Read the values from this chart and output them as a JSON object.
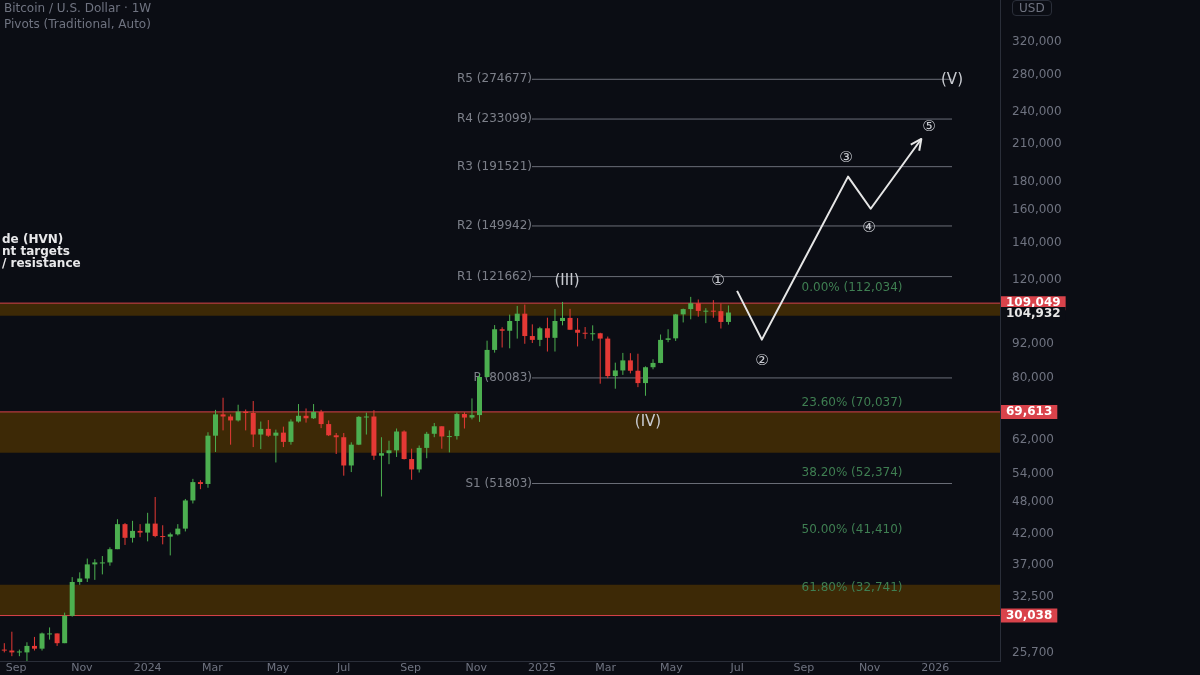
{
  "chart_data": {
    "type": "candlestick",
    "title": "Bitcoin / U.S. Dollar · 1W",
    "subtitle": "Pivots (Traditional, Auto)",
    "ylabel": "USD",
    "log": true,
    "xlim": [
      "2023-08-17",
      "2026-03-02"
    ],
    "xticks": [
      {
        "value": "2023-09-01",
        "label": "Sep"
      },
      {
        "value": "2023-11-01",
        "label": "Nov"
      },
      {
        "value": "2024-01-01",
        "label": "2024"
      },
      {
        "value": "2024-03-01",
        "label": "Mar"
      },
      {
        "value": "2024-05-01",
        "label": "May"
      },
      {
        "value": "2024-07-01",
        "label": "Jul"
      },
      {
        "value": "2024-09-01",
        "label": "Sep"
      },
      {
        "value": "2024-11-01",
        "label": "Nov"
      },
      {
        "value": "2025-01-01",
        "label": "2025"
      },
      {
        "value": "2025-03-01",
        "label": "Mar"
      },
      {
        "value": "2025-05-01",
        "label": "May"
      },
      {
        "value": "2025-07-01",
        "label": "Jul"
      },
      {
        "value": "2025-09-01",
        "label": "Sep"
      },
      {
        "value": "2025-11-01",
        "label": "Nov"
      },
      {
        "value": "2026-01-01",
        "label": "2026"
      }
    ],
    "ylim": [
      24900,
      381000
    ],
    "yticks": [
      {
        "value": 25700,
        "label": "25,700"
      },
      {
        "value": 32500,
        "label": "32,500"
      },
      {
        "value": 37000,
        "label": "37,000"
      },
      {
        "value": 42000,
        "label": "42,000"
      },
      {
        "value": 48000,
        "label": "48,000"
      },
      {
        "value": 54000,
        "label": "54,000"
      },
      {
        "value": 62000,
        "label": "62,000"
      },
      {
        "value": 80000,
        "label": "80,000"
      },
      {
        "value": 92000,
        "label": "92,000"
      },
      {
        "value": 120000,
        "label": "120,000"
      },
      {
        "value": 140000,
        "label": "140,000"
      },
      {
        "value": 160000,
        "label": "160,000"
      },
      {
        "value": 180000,
        "label": "180,000"
      },
      {
        "value": 210000,
        "label": "210,000"
      },
      {
        "value": 240000,
        "label": "240,000"
      },
      {
        "value": 280000,
        "label": "280,000"
      },
      {
        "value": 320000,
        "label": "320,000"
      }
    ],
    "x": [
      "2023-08-21",
      "2023-08-28",
      "2023-09-04",
      "2023-09-11",
      "2023-09-18",
      "2023-09-25",
      "2023-10-02",
      "2023-10-09",
      "2023-10-16",
      "2023-10-23",
      "2023-10-30",
      "2023-11-06",
      "2023-11-13",
      "2023-11-20",
      "2023-11-27",
      "2023-12-04",
      "2023-12-11",
      "2023-12-18",
      "2023-12-25",
      "2024-01-01",
      "2024-01-08",
      "2024-01-15",
      "2024-01-22",
      "2024-01-29",
      "2024-02-05",
      "2024-02-12",
      "2024-02-19",
      "2024-02-26",
      "2024-03-04",
      "2024-03-11",
      "2024-03-18",
      "2024-03-25",
      "2024-04-01",
      "2024-04-08",
      "2024-04-15",
      "2024-04-22",
      "2024-04-29",
      "2024-05-06",
      "2024-05-13",
      "2024-05-20",
      "2024-05-27",
      "2024-06-03",
      "2024-06-10",
      "2024-06-17",
      "2024-06-24",
      "2024-07-01",
      "2024-07-08",
      "2024-07-15",
      "2024-07-22",
      "2024-07-29",
      "2024-08-05",
      "2024-08-12",
      "2024-08-19",
      "2024-08-26",
      "2024-09-02",
      "2024-09-09",
      "2024-09-16",
      "2024-09-23",
      "2024-09-30",
      "2024-10-07",
      "2024-10-14",
      "2024-10-21",
      "2024-10-28",
      "2024-11-04",
      "2024-11-11",
      "2024-11-18",
      "2024-11-25",
      "2024-12-02",
      "2024-12-09",
      "2024-12-16",
      "2024-12-23",
      "2024-12-30",
      "2025-01-06",
      "2025-01-13",
      "2025-01-20",
      "2025-01-27",
      "2025-02-03",
      "2025-02-10",
      "2025-02-17",
      "2025-02-24",
      "2025-03-03",
      "2025-03-10",
      "2025-03-17",
      "2025-03-24",
      "2025-03-31",
      "2025-04-07",
      "2025-04-14",
      "2025-04-21",
      "2025-04-28",
      "2025-05-05",
      "2025-05-12",
      "2025-05-19",
      "2025-05-26",
      "2025-06-02",
      "2025-06-09",
      "2025-06-16",
      "2025-06-23"
    ],
    "ohlc": [
      [
        26100,
        26800,
        25800,
        26000
      ],
      [
        26000,
        28100,
        25400,
        25800
      ],
      [
        25800,
        26100,
        25400,
        25900
      ],
      [
        25800,
        26900,
        24900,
        26500
      ],
      [
        26500,
        27500,
        26000,
        26200
      ],
      [
        26200,
        28000,
        26000,
        27900
      ],
      [
        27900,
        28600,
        27200,
        27900
      ],
      [
        27900,
        27900,
        26500,
        26800
      ],
      [
        26800,
        30400,
        26800,
        30000
      ],
      [
        30000,
        35200,
        29900,
        34500
      ],
      [
        34500,
        35900,
        34100,
        35000
      ],
      [
        35000,
        38000,
        34500,
        37100
      ],
      [
        37100,
        37900,
        34800,
        37400
      ],
      [
        37400,
        38400,
        35600,
        37400
      ],
      [
        37400,
        39800,
        36900,
        39500
      ],
      [
        39500,
        44700,
        39500,
        43800
      ],
      [
        43800,
        44000,
        40200,
        41400
      ],
      [
        41400,
        44400,
        40600,
        42600
      ],
      [
        42600,
        43800,
        41500,
        42300
      ],
      [
        42300,
        45900,
        40800,
        43900
      ],
      [
        43900,
        49000,
        41500,
        41700
      ],
      [
        41700,
        43600,
        40300,
        41600
      ],
      [
        41600,
        42300,
        38500,
        42000
      ],
      [
        42000,
        43800,
        41800,
        43000
      ],
      [
        43000,
        48600,
        42500,
        48300
      ],
      [
        48300,
        52800,
        47700,
        52100
      ],
      [
        52100,
        52500,
        50600,
        51700
      ],
      [
        51700,
        64000,
        50900,
        63100
      ],
      [
        63100,
        70200,
        59000,
        68900
      ],
      [
        68900,
        73800,
        64500,
        68300
      ],
      [
        68300,
        68900,
        60800,
        67200
      ],
      [
        67200,
        71700,
        66900,
        69700
      ],
      [
        69700,
        70300,
        64500,
        69300
      ],
      [
        69300,
        72800,
        60200,
        63400
      ],
      [
        63400,
        66900,
        59700,
        64900
      ],
      [
        64900,
        67300,
        62800,
        63100
      ],
      [
        63100,
        64700,
        56500,
        63900
      ],
      [
        63900,
        65500,
        60200,
        61500
      ],
      [
        61500,
        67500,
        60800,
        66900
      ],
      [
        66900,
        71900,
        66600,
        68500
      ],
      [
        68500,
        70600,
        66600,
        67800
      ],
      [
        67800,
        71900,
        67600,
        69600
      ],
      [
        69600,
        70200,
        65100,
        66200
      ],
      [
        66200,
        67200,
        63000,
        63200
      ],
      [
        63200,
        63800,
        58500,
        62700
      ],
      [
        62700,
        63800,
        53500,
        55800
      ],
      [
        55800,
        61400,
        54300,
        60800
      ],
      [
        60800,
        68400,
        60700,
        68200
      ],
      [
        68200,
        69400,
        63400,
        68300
      ],
      [
        68300,
        70100,
        57100,
        58100
      ],
      [
        58100,
        62700,
        49100,
        58700
      ],
      [
        58700,
        61800,
        56100,
        59400
      ],
      [
        59400,
        65000,
        57800,
        64200
      ],
      [
        64200,
        64500,
        57200,
        57300
      ],
      [
        57300,
        59800,
        52600,
        54900
      ],
      [
        54900,
        60600,
        54200,
        60000
      ],
      [
        60000,
        64100,
        57500,
        63600
      ],
      [
        63600,
        66500,
        62700,
        65600
      ],
      [
        65600,
        65600,
        59800,
        62900
      ],
      [
        62900,
        64500,
        58900,
        63000
      ],
      [
        63000,
        69400,
        62100,
        69000
      ],
      [
        69000,
        69500,
        65000,
        68000
      ],
      [
        68000,
        73600,
        67500,
        68700
      ],
      [
        68700,
        81500,
        66800,
        80400
      ],
      [
        80400,
        93400,
        80200,
        89900
      ],
      [
        89900,
        99600,
        88900,
        97900
      ],
      [
        97900,
        98700,
        90800,
        97300
      ],
      [
        97300,
        104000,
        90500,
        101300
      ],
      [
        101300,
        107800,
        94200,
        104400
      ],
      [
        104400,
        108400,
        92200,
        95200
      ],
      [
        95200,
        99900,
        92500,
        93700
      ],
      [
        93700,
        98900,
        91300,
        98300
      ],
      [
        98300,
        102700,
        89300,
        94500
      ],
      [
        94500,
        106400,
        89300,
        101300
      ],
      [
        101300,
        109600,
        99500,
        102600
      ],
      [
        102600,
        106500,
        97700,
        97700
      ],
      [
        97700,
        102500,
        91200,
        96500
      ],
      [
        96500,
        98800,
        94100,
        96100
      ],
      [
        96100,
        99500,
        93400,
        96300
      ],
      [
        96300,
        96500,
        78200,
        94200
      ],
      [
        94200,
        95000,
        80000,
        80700
      ],
      [
        80700,
        85300,
        76600,
        82600
      ],
      [
        82600,
        88800,
        81100,
        86100
      ],
      [
        86100,
        88700,
        81600,
        82500
      ],
      [
        82500,
        88500,
        77100,
        78400
      ],
      [
        78400,
        84000,
        74400,
        83700
      ],
      [
        83700,
        86500,
        83000,
        85200
      ],
      [
        85200,
        95800,
        85100,
        93700
      ],
      [
        93700,
        97900,
        92800,
        94300
      ],
      [
        94300,
        104300,
        93300,
        104100
      ],
      [
        104100,
        106600,
        100700,
        106400
      ],
      [
        106400,
        111900,
        102000,
        109000
      ],
      [
        109000,
        110700,
        103100,
        105600
      ],
      [
        105600,
        106800,
        100400,
        105700
      ],
      [
        105700,
        110400,
        102700,
        105500
      ],
      [
        105500,
        108900,
        98200,
        100900
      ],
      [
        100900,
        108000,
        99800,
        104900
      ]
    ],
    "colors": [
      "#e53935",
      "#e53935",
      "#4caf50",
      "#4caf50",
      "#e53935",
      "#4caf50",
      "#4caf50",
      "#e53935",
      "#4caf50",
      "#4caf50",
      "#4caf50",
      "#4caf50",
      "#4caf50",
      "#4caf50",
      "#4caf50",
      "#4caf50",
      "#e53935",
      "#4caf50",
      "#e53935",
      "#4caf50",
      "#e53935",
      "#e53935",
      "#4caf50",
      "#4caf50",
      "#4caf50",
      "#4caf50",
      "#e53935",
      "#4caf50",
      "#4caf50",
      "#e53935",
      "#e53935",
      "#4caf50",
      "#e53935",
      "#e53935",
      "#4caf50",
      "#e53935",
      "#4caf50",
      "#e53935",
      "#4caf50",
      "#4caf50",
      "#e53935",
      "#4caf50",
      "#e53935",
      "#e53935",
      "#e53935",
      "#e53935",
      "#4caf50",
      "#4caf50",
      "#4caf50",
      "#e53935",
      "#4caf50",
      "#4caf50",
      "#4caf50",
      "#e53935",
      "#e53935",
      "#4caf50",
      "#4caf50",
      "#4caf50",
      "#e53935",
      "#4caf50",
      "#4caf50",
      "#e53935",
      "#4caf50",
      "#4caf50",
      "#4caf50",
      "#4caf50",
      "#e53935",
      "#4caf50",
      "#4caf50",
      "#e53935",
      "#e53935",
      "#4caf50",
      "#e53935",
      "#4caf50",
      "#4caf50",
      "#e53935",
      "#e53935",
      "#e53935",
      "#4caf50",
      "#e53935",
      "#e53935",
      "#4caf50",
      "#4caf50",
      "#e53935",
      "#e53935",
      "#4caf50",
      "#4caf50",
      "#4caf50",
      "#4caf50",
      "#4caf50",
      "#4caf50",
      "#4caf50",
      "#e53935",
      "#4caf50",
      "#e53935",
      "#e53935",
      "#4caf50"
    ],
    "series": [
      {
        "type": "line",
        "color": "#e6e6e6",
        "x": [
          "2025-07-01",
          "2025-07-24",
          "2025-10-12",
          "2025-11-02",
          "2025-12-19"
        ],
        "values": [
          114700,
          93800,
          183800,
          161000,
          214700
        ]
      }
    ],
    "marker": "none",
    "bands": [
      {
        "axis": "y",
        "from": 103500,
        "to": 109049,
        "color": "#3d2906"
      },
      {
        "axis": "y",
        "from": 58800,
        "to": 69613,
        "color": "#3d2906"
      },
      {
        "axis": "y",
        "from": 30038,
        "to": 34100,
        "color": "#3d2906"
      }
    ],
    "ref_lines": [
      {
        "axis": "y",
        "value": 109049,
        "label": "109,049",
        "color": "#d9434b"
      },
      {
        "axis": "y",
        "value": 69613,
        "label": "69,613",
        "color": "#d9434b"
      },
      {
        "axis": "y",
        "value": 30038,
        "label": "30,038",
        "color": "#d9434b"
      },
      {
        "axis": "y",
        "value": 274677,
        "label": "R5 (274677)",
        "color": "#6b6e78"
      },
      {
        "axis": "y",
        "value": 233099,
        "label": "R4 (233099)",
        "color": "#6b6e78"
      },
      {
        "axis": "y",
        "value": 191521,
        "label": "R3 (191521)",
        "color": "#6b6e78"
      },
      {
        "axis": "y",
        "value": 149942,
        "label": "R2 (149942)",
        "color": "#6b6e78"
      },
      {
        "axis": "y",
        "value": 121662,
        "label": "R1 (121662)",
        "color": "#6b6e78"
      },
      {
        "axis": "y",
        "value": 80083,
        "label": "P (80083)",
        "color": "#6b6e78"
      },
      {
        "axis": "y",
        "value": 51803,
        "label": "S1 (51803)",
        "color": "#6b6e78"
      }
    ],
    "annotations": [
      "de (HVN)",
      "nt targets",
      "/ resistance",
      "104,932",
      "0.00% (112,034)",
      "23.60% (70,037)",
      "38.20% (52,374)",
      "50.00% (41,410)",
      "61.80% (32,741)",
      "(III)",
      "(IV)",
      "(V)",
      "①",
      "②",
      "③",
      "④",
      "⑤"
    ]
  }
}
